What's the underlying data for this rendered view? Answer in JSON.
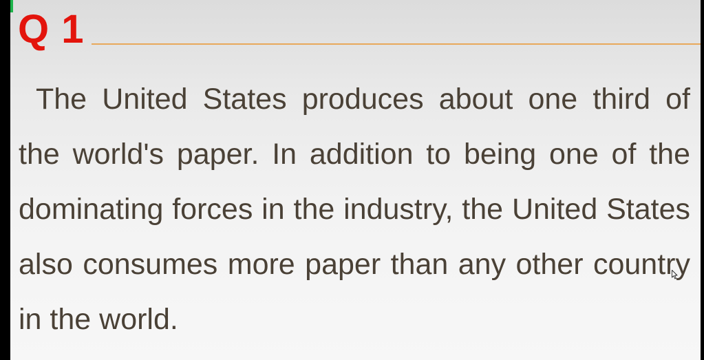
{
  "slide": {
    "title": "Q 1",
    "body": "The United States produces about one third of the world's paper. In addition to being one of the dominating forces in the industry, the United States also consumes more paper than any other country in the world."
  },
  "colors": {
    "title": "#e3140c",
    "rule": "#e8a85a",
    "text": "#4a4136",
    "background": "#f3f3f3"
  },
  "icons": {
    "cursor": "mouse-pointer-icon"
  }
}
